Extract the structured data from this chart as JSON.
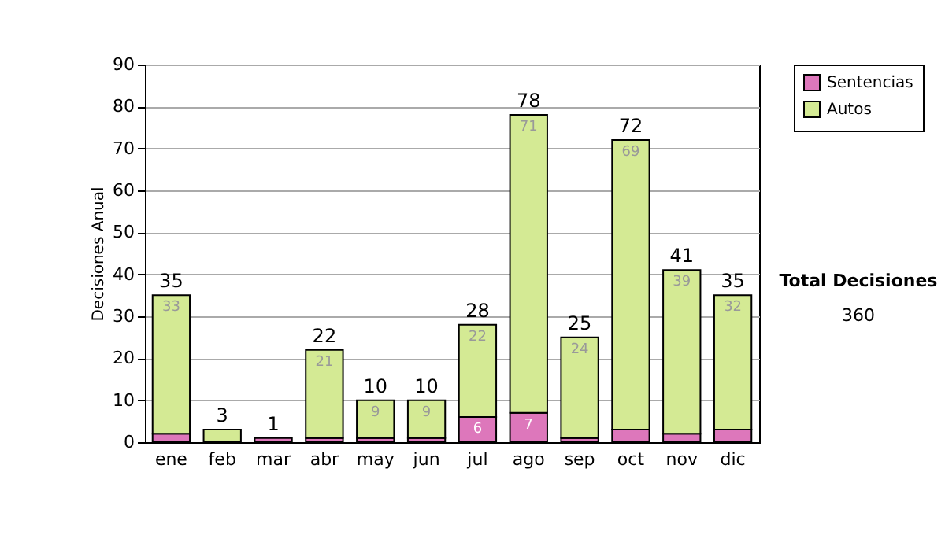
{
  "chart_data": {
    "type": "bar",
    "stacked": true,
    "ylabel": "Decisiones Anual",
    "categories": [
      "ene",
      "feb",
      "mar",
      "abr",
      "may",
      "jun",
      "jul",
      "ago",
      "sep",
      "oct",
      "nov",
      "dic"
    ],
    "series": [
      {
        "name": "Sentencias",
        "color": "#dd77bb",
        "values": [
          2,
          0,
          1,
          1,
          1,
          1,
          6,
          7,
          1,
          3,
          2,
          3
        ],
        "value_labels": [
          null,
          null,
          null,
          null,
          null,
          null,
          "6",
          "7",
          null,
          null,
          null,
          null
        ]
      },
      {
        "name": "Autos",
        "color": "#d4ea94",
        "values": [
          33,
          3,
          0,
          21,
          9,
          9,
          22,
          71,
          24,
          69,
          39,
          32
        ],
        "value_labels": [
          "33",
          null,
          null,
          "21",
          "9",
          "9",
          "22",
          "71",
          "24",
          "69",
          "39",
          "32"
        ]
      }
    ],
    "totals": [
      "35",
      "3",
      "1",
      "22",
      "10",
      "10",
      "28",
      "78",
      "25",
      "72",
      "41",
      "35"
    ],
    "ylim": [
      0,
      90
    ],
    "yticks": [
      0,
      10,
      20,
      30,
      40,
      50,
      60,
      70,
      80,
      90
    ],
    "grid": "y",
    "legend": "right",
    "annotations": [
      "Total Decisiones",
      "360"
    ]
  }
}
